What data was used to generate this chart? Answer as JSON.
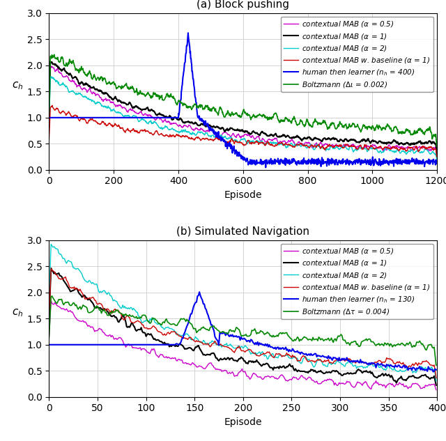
{
  "subplot_a": {
    "title": "(a) Block pushing",
    "xlabel": "Episode",
    "ylabel": "$c_h$",
    "xlim": [
      0,
      1200
    ],
    "ylim": [
      0.0,
      3.0
    ],
    "xticks": [
      0,
      200,
      400,
      600,
      800,
      1000,
      1200
    ],
    "yticks": [
      0.0,
      0.5,
      1.0,
      1.5,
      2.0,
      2.5,
      3.0
    ],
    "n_episodes": 1200,
    "human_switch": 400,
    "legend": [
      {
        "label": "contextual MAB ($\\alpha$ = 0.5)",
        "color": "#cc00cc",
        "lw": 1.0
      },
      {
        "label": "contextual MAB ($\\alpha$ = 1)",
        "color": "#000000",
        "lw": 1.5
      },
      {
        "label": "contextual MAB ($\\alpha$ = 2)",
        "color": "#00cccc",
        "lw": 1.0
      },
      {
        "label": "contextual MAB w. baseline ($\\alpha$ = 1)",
        "color": "#cc0000",
        "lw": 1.0
      },
      {
        "label": "human then learner ($n_h$ = 400)",
        "color": "#0000ee",
        "lw": 1.5
      },
      {
        "label": "Boltzmann ($\\Delta\\iota$ = 0.002)",
        "color": "#008800",
        "lw": 1.2
      }
    ]
  },
  "subplot_b": {
    "title": "(b) Simulated Navigation",
    "xlabel": "Episode",
    "ylabel": "$c_h$",
    "xlim": [
      0,
      400
    ],
    "ylim": [
      0.0,
      3.0
    ],
    "xticks": [
      0,
      50,
      100,
      150,
      200,
      250,
      300,
      350,
      400
    ],
    "yticks": [
      0.0,
      0.5,
      1.0,
      1.5,
      2.0,
      2.5,
      3.0
    ],
    "n_episodes": 400,
    "human_switch": 130,
    "legend": [
      {
        "label": "contextual MAB ($\\alpha$ = 0.5)",
        "color": "#cc00cc",
        "lw": 1.0
      },
      {
        "label": "contextual MAB ($\\alpha$ = 1)",
        "color": "#000000",
        "lw": 1.5
      },
      {
        "label": "contextual MAB ($\\alpha$ = 2)",
        "color": "#00cccc",
        "lw": 1.0
      },
      {
        "label": "contextual MAB w. baseline ($\\alpha$ = 1)",
        "color": "#cc0000",
        "lw": 1.0
      },
      {
        "label": "human then learner ($n_h$ = 130)",
        "color": "#0000ee",
        "lw": 1.5
      },
      {
        "label": "Boltzmann ($\\Delta\\tau$ = 0.004)",
        "color": "#008800",
        "lw": 1.2
      }
    ]
  },
  "fig_width": 6.4,
  "fig_height": 6.33,
  "dpi": 100
}
